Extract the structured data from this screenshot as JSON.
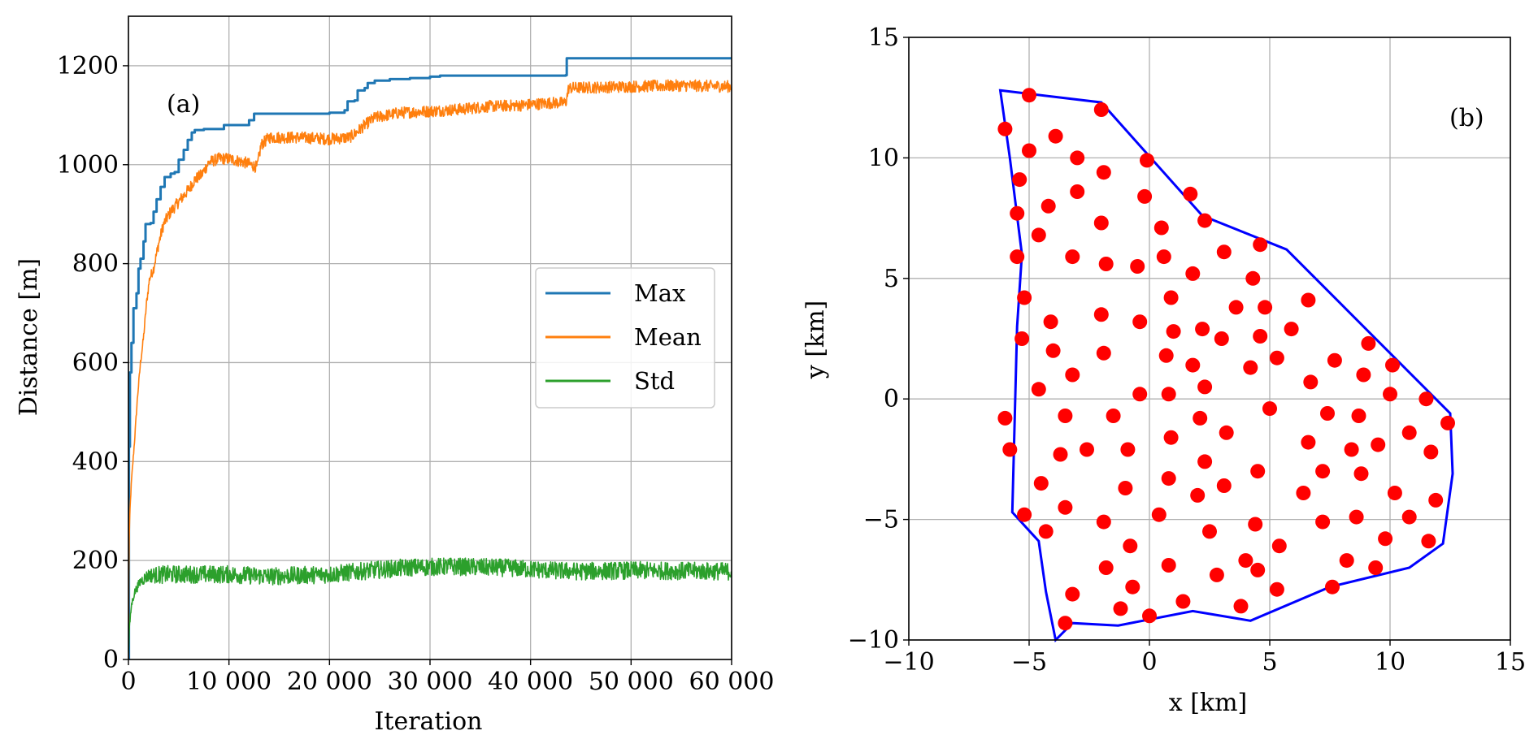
{
  "chart_data": [
    {
      "id": "a",
      "type": "line",
      "panel_label": "(a)",
      "xlabel": "Iteration",
      "ylabel": "Distance [m]",
      "xlim": [
        0,
        60000
      ],
      "ylim": [
        0,
        1300
      ],
      "xticks": [
        0,
        10000,
        20000,
        30000,
        40000,
        50000,
        60000
      ],
      "xtick_labels": [
        "0",
        "10 000",
        "20 000",
        "30 000",
        "40 000",
        "50 000",
        "60 000"
      ],
      "yticks": [
        0,
        200,
        400,
        600,
        800,
        1000,
        1200
      ],
      "ytick_labels": [
        "0",
        "200",
        "400",
        "600",
        "800",
        "1000",
        "1200"
      ],
      "grid": true,
      "legend_position": "center-right",
      "series": [
        {
          "name": "Max",
          "color": "#1f77b4",
          "noise": 0,
          "points": [
            [
              0,
              0
            ],
            [
              50,
              430
            ],
            [
              150,
              580
            ],
            [
              300,
              640
            ],
            [
              500,
              710
            ],
            [
              800,
              740
            ],
            [
              1000,
              790
            ],
            [
              1200,
              810
            ],
            [
              1500,
              845
            ],
            [
              1700,
              880
            ],
            [
              2200,
              882
            ],
            [
              2500,
              905
            ],
            [
              2800,
              930
            ],
            [
              3200,
              955
            ],
            [
              3600,
              975
            ],
            [
              4200,
              982
            ],
            [
              4600,
              985
            ],
            [
              5000,
              1010
            ],
            [
              5500,
              1030
            ],
            [
              5900,
              1050
            ],
            [
              6300,
              1065
            ],
            [
              6600,
              1070
            ],
            [
              7500,
              1072
            ],
            [
              9500,
              1080
            ],
            [
              12000,
              1090
            ],
            [
              12500,
              1103
            ],
            [
              20000,
              1105
            ],
            [
              21500,
              1110
            ],
            [
              21800,
              1128
            ],
            [
              22500,
              1130
            ],
            [
              22800,
              1150
            ],
            [
              23500,
              1155
            ],
            [
              23800,
              1165
            ],
            [
              24500,
              1170
            ],
            [
              26000,
              1173
            ],
            [
              28000,
              1175
            ],
            [
              30000,
              1178
            ],
            [
              31000,
              1180
            ],
            [
              43500,
              1181
            ],
            [
              43600,
              1215
            ],
            [
              60000,
              1215
            ]
          ]
        },
        {
          "name": "Mean",
          "color": "#ff7f0e",
          "noise": 12,
          "points": [
            [
              0,
              0
            ],
            [
              50,
              220
            ],
            [
              150,
              300
            ],
            [
              300,
              360
            ],
            [
              600,
              440
            ],
            [
              900,
              530
            ],
            [
              1200,
              600
            ],
            [
              1500,
              650
            ],
            [
              1800,
              720
            ],
            [
              2100,
              770
            ],
            [
              2500,
              790
            ],
            [
              3000,
              840
            ],
            [
              3500,
              880
            ],
            [
              4200,
              905
            ],
            [
              5000,
              925
            ],
            [
              6000,
              950
            ],
            [
              6600,
              970
            ],
            [
              7300,
              980
            ],
            [
              8000,
              1005
            ],
            [
              9000,
              1012
            ],
            [
              10000,
              1012
            ],
            [
              11500,
              1005
            ],
            [
              12800,
              995
            ],
            [
              13200,
              1040
            ],
            [
              14000,
              1055
            ],
            [
              17000,
              1055
            ],
            [
              20000,
              1052
            ],
            [
              22000,
              1055
            ],
            [
              22500,
              1062
            ],
            [
              23500,
              1080
            ],
            [
              24500,
              1095
            ],
            [
              27000,
              1105
            ],
            [
              30000,
              1108
            ],
            [
              33000,
              1112
            ],
            [
              36000,
              1118
            ],
            [
              39000,
              1120
            ],
            [
              42000,
              1125
            ],
            [
              43500,
              1125
            ],
            [
              43800,
              1155
            ],
            [
              50000,
              1158
            ],
            [
              55000,
              1160
            ],
            [
              60000,
              1158
            ]
          ]
        },
        {
          "name": "Std",
          "color": "#2ca02c",
          "noise": 18,
          "points": [
            [
              0,
              10
            ],
            [
              80,
              60
            ],
            [
              300,
              110
            ],
            [
              600,
              135
            ],
            [
              1200,
              158
            ],
            [
              2000,
              170
            ],
            [
              4000,
              172
            ],
            [
              10000,
              172
            ],
            [
              14000,
              168
            ],
            [
              20000,
              172
            ],
            [
              24000,
              180
            ],
            [
              28000,
              186
            ],
            [
              32000,
              188
            ],
            [
              38000,
              185
            ],
            [
              42000,
              180
            ],
            [
              45000,
              178
            ],
            [
              50000,
              180
            ],
            [
              60000,
              178
            ]
          ]
        }
      ]
    },
    {
      "id": "b",
      "type": "scatter",
      "panel_label": "(b)",
      "xlabel": "x [km]",
      "ylabel": "y [km]",
      "xlim": [
        -10,
        15
      ],
      "ylim": [
        -10,
        15
      ],
      "xticks": [
        -10,
        -5,
        0,
        5,
        10,
        15
      ],
      "xtick_labels": [
        "−10",
        "−5",
        "0",
        "5",
        "10",
        "15"
      ],
      "yticks": [
        -10,
        -5,
        0,
        5,
        10,
        15
      ],
      "ytick_labels": [
        "−10",
        "−5",
        "0",
        "5",
        "10",
        "15"
      ],
      "grid": true,
      "boundary_color": "#0000ff",
      "point_color": "#ff0000",
      "boundary": [
        [
          -6.2,
          12.8
        ],
        [
          -2.0,
          12.3
        ],
        [
          2.2,
          7.6
        ],
        [
          5.7,
          6.2
        ],
        [
          12.5,
          -0.6
        ],
        [
          12.6,
          -3.1
        ],
        [
          12.2,
          -6.0
        ],
        [
          10.8,
          -7.0
        ],
        [
          7.5,
          -7.8
        ],
        [
          4.2,
          -9.2
        ],
        [
          1.8,
          -8.8
        ],
        [
          -1.3,
          -9.4
        ],
        [
          -3.2,
          -9.3
        ],
        [
          -3.9,
          -10.0
        ],
        [
          -4.3,
          -8.0
        ],
        [
          -4.6,
          -5.9
        ],
        [
          -5.7,
          -4.7
        ],
        [
          -5.5,
          3.0
        ],
        [
          -5.3,
          6.0
        ],
        [
          -5.8,
          10.0
        ]
      ],
      "points": [
        [
          -5.0,
          12.6
        ],
        [
          -2.0,
          12.0
        ],
        [
          -6.0,
          11.2
        ],
        [
          -3.9,
          10.9
        ],
        [
          -5.0,
          10.3
        ],
        [
          -3.0,
          10.0
        ],
        [
          -0.1,
          9.9
        ],
        [
          -5.4,
          9.1
        ],
        [
          -3.0,
          8.6
        ],
        [
          -1.9,
          9.4
        ],
        [
          -0.2,
          8.4
        ],
        [
          1.7,
          8.5
        ],
        [
          -5.5,
          7.7
        ],
        [
          -4.2,
          8.0
        ],
        [
          -2.0,
          7.3
        ],
        [
          0.5,
          7.1
        ],
        [
          2.3,
          7.4
        ],
        [
          -4.6,
          6.8
        ],
        [
          4.6,
          6.4
        ],
        [
          -5.5,
          5.9
        ],
        [
          -3.2,
          5.9
        ],
        [
          -1.8,
          5.6
        ],
        [
          -0.5,
          5.5
        ],
        [
          0.6,
          5.9
        ],
        [
          1.8,
          5.2
        ],
        [
          3.1,
          6.1
        ],
        [
          4.3,
          5.0
        ],
        [
          -5.2,
          4.2
        ],
        [
          0.9,
          4.2
        ],
        [
          3.6,
          3.8
        ],
        [
          4.8,
          3.8
        ],
        [
          6.6,
          4.1
        ],
        [
          -4.1,
          3.2
        ],
        [
          -2.0,
          3.5
        ],
        [
          -0.4,
          3.2
        ],
        [
          1.0,
          2.8
        ],
        [
          2.2,
          2.9
        ],
        [
          5.9,
          2.9
        ],
        [
          -5.3,
          2.5
        ],
        [
          -4.0,
          2.0
        ],
        [
          -1.9,
          1.9
        ],
        [
          0.7,
          1.8
        ],
        [
          3.0,
          2.5
        ],
        [
          4.6,
          2.6
        ],
        [
          9.1,
          2.3
        ],
        [
          1.8,
          1.4
        ],
        [
          4.2,
          1.3
        ],
        [
          5.3,
          1.7
        ],
        [
          7.7,
          1.6
        ],
        [
          10.1,
          1.4
        ],
        [
          -3.2,
          1.0
        ],
        [
          6.7,
          0.7
        ],
        [
          8.9,
          1.0
        ],
        [
          -4.6,
          0.4
        ],
        [
          -0.4,
          0.2
        ],
        [
          0.8,
          0.2
        ],
        [
          2.3,
          0.5
        ],
        [
          10.0,
          0.2
        ],
        [
          11.5,
          0.0
        ],
        [
          -6.0,
          -0.8
        ],
        [
          -3.5,
          -0.7
        ],
        [
          -1.5,
          -0.7
        ],
        [
          5.0,
          -0.4
        ],
        [
          7.4,
          -0.6
        ],
        [
          8.7,
          -0.7
        ],
        [
          12.4,
          -1.0
        ],
        [
          2.1,
          -0.8
        ],
        [
          0.9,
          -1.6
        ],
        [
          3.2,
          -1.4
        ],
        [
          6.6,
          -1.8
        ],
        [
          -5.8,
          -2.1
        ],
        [
          -3.7,
          -2.3
        ],
        [
          -2.6,
          -2.1
        ],
        [
          -0.9,
          -2.1
        ],
        [
          2.3,
          -2.6
        ],
        [
          8.4,
          -2.1
        ],
        [
          9.5,
          -1.9
        ],
        [
          10.8,
          -1.4
        ],
        [
          11.7,
          -2.2
        ],
        [
          -4.5,
          -3.5
        ],
        [
          -1.0,
          -3.7
        ],
        [
          0.8,
          -3.3
        ],
        [
          3.1,
          -3.6
        ],
        [
          4.5,
          -3.0
        ],
        [
          7.2,
          -3.0
        ],
        [
          8.8,
          -3.1
        ],
        [
          6.4,
          -3.9
        ],
        [
          10.2,
          -3.9
        ],
        [
          -5.2,
          -4.8
        ],
        [
          -3.5,
          -4.5
        ],
        [
          -1.9,
          -5.1
        ],
        [
          0.4,
          -4.8
        ],
        [
          2.0,
          -4.0
        ],
        [
          4.4,
          -5.2
        ],
        [
          7.2,
          -5.1
        ],
        [
          8.6,
          -4.9
        ],
        [
          10.8,
          -4.9
        ],
        [
          11.9,
          -4.2
        ],
        [
          -4.3,
          -5.5
        ],
        [
          -0.8,
          -6.1
        ],
        [
          2.5,
          -5.5
        ],
        [
          5.4,
          -6.1
        ],
        [
          9.8,
          -5.8
        ],
        [
          -1.8,
          -7.0
        ],
        [
          0.8,
          -6.9
        ],
        [
          2.8,
          -7.3
        ],
        [
          4.0,
          -6.7
        ],
        [
          8.2,
          -6.7
        ],
        [
          9.4,
          -7.0
        ],
        [
          11.6,
          -5.9
        ],
        [
          -3.2,
          -8.1
        ],
        [
          -0.7,
          -7.8
        ],
        [
          1.4,
          -8.4
        ],
        [
          4.5,
          -7.1
        ],
        [
          5.3,
          -7.9
        ],
        [
          7.6,
          -7.8
        ],
        [
          -1.2,
          -8.7
        ],
        [
          0.0,
          -9.0
        ],
        [
          3.8,
          -8.6
        ],
        [
          -3.5,
          -9.3
        ]
      ]
    }
  ]
}
